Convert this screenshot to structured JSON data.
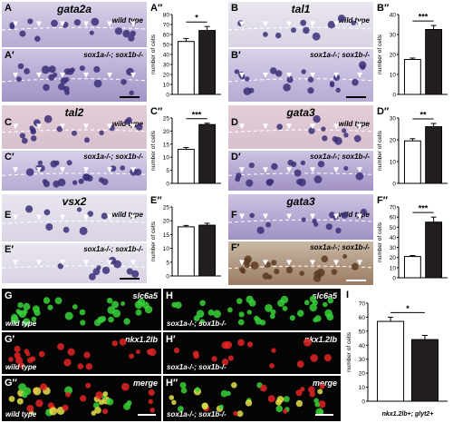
{
  "panels": {
    "A": {
      "gene": "gata2a",
      "top_label": "A",
      "bottom_label": "A′",
      "chart_label": "A′′",
      "wt": "wild type",
      "mut": "sox1a-/-; sox1b-/-",
      "sig": "*"
    },
    "B": {
      "gene": "tal1",
      "top_label": "B",
      "bottom_label": "B′",
      "chart_label": "B′′",
      "wt": "wild type",
      "mut": "sox1a-/-; sox1b-/-",
      "sig": "***"
    },
    "C": {
      "gene": "tal2",
      "top_label": "C",
      "bottom_label": "C′",
      "chart_label": "C′′",
      "wt": "wild type",
      "mut": "sox1a-/-; sox1b-/-",
      "sig": "***"
    },
    "D": {
      "gene": "gata3",
      "top_label": "D",
      "bottom_label": "D′",
      "chart_label": "D′′",
      "wt": "wild type",
      "mut": "sox1a-/-; sox1b-/-",
      "sig": "**"
    },
    "E": {
      "gene": "vsx2",
      "top_label": "E",
      "bottom_label": "E′",
      "chart_label": "E′′",
      "wt": "wild type",
      "mut": "sox1a-/-; sox1b-/-",
      "sig": ""
    },
    "F": {
      "gene": "gata3",
      "top_label": "F",
      "bottom_label": "F′",
      "chart_label": "F′′",
      "wt": "wild type",
      "mut": "sox1a-/-; sox1b-/-",
      "sig": "***"
    },
    "G": {
      "label": "G",
      "label2": "G′",
      "label3": "G′′",
      "c1": "slc6a5",
      "c2": "nkx1.2lb",
      "c3": "merge",
      "geno": "wild type"
    },
    "H": {
      "label": "H",
      "label2": "H′",
      "label3": "H′′",
      "c1": "slc6a5",
      "c2": "nkx1.2lb",
      "c3": "merge",
      "geno": "sox1a-/-; sox1b-/-"
    },
    "I": {
      "label": "I",
      "xlabel": "nkx1.2lb+; glyt2+",
      "sig": "*"
    }
  },
  "chart_data": [
    {
      "id": "A",
      "type": "bar",
      "categories": [
        "wild type",
        "sox1a-/-; sox1b-/-"
      ],
      "values": [
        53,
        64
      ],
      "errors": [
        3,
        4
      ],
      "ylabel": "number of cells",
      "ylim": [
        0,
        80
      ],
      "ticks": [
        0,
        10,
        20,
        30,
        40,
        50,
        60,
        70,
        80
      ]
    },
    {
      "id": "B",
      "type": "bar",
      "categories": [
        "wild type",
        "sox1a-/-; sox1b-/-"
      ],
      "values": [
        17.5,
        32.5
      ],
      "errors": [
        0.7,
        2
      ],
      "ylabel": "number of cells",
      "ylim": [
        0,
        40
      ],
      "ticks": [
        0,
        10,
        20,
        30,
        40
      ]
    },
    {
      "id": "C",
      "type": "bar",
      "categories": [
        "wild type",
        "sox1a-/-; sox1b-/-"
      ],
      "values": [
        13,
        22.5
      ],
      "errors": [
        0.7,
        0.5
      ],
      "ylabel": "number of cells",
      "ylim": [
        0,
        25
      ],
      "ticks": [
        0,
        5,
        10,
        15,
        20,
        25
      ]
    },
    {
      "id": "D",
      "type": "bar",
      "categories": [
        "wild type",
        "sox1a-/-; sox1b-/-"
      ],
      "values": [
        19.5,
        26
      ],
      "errors": [
        1,
        1.5
      ],
      "ylabel": "number of cells",
      "ylim": [
        0,
        30
      ],
      "ticks": [
        0,
        10,
        20,
        30
      ]
    },
    {
      "id": "E",
      "type": "bar",
      "categories": [
        "wild type",
        "sox1a-/-; sox1b-/-"
      ],
      "values": [
        17.8,
        18.4
      ],
      "errors": [
        0.5,
        0.7
      ],
      "ylabel": "number of cells",
      "ylim": [
        0,
        25
      ],
      "ticks": [
        0,
        5,
        10,
        15,
        20,
        25
      ]
    },
    {
      "id": "F",
      "type": "bar",
      "categories": [
        "wild type",
        "sox1a-/-; sox1b-/-"
      ],
      "values": [
        21,
        55
      ],
      "errors": [
        1,
        5
      ],
      "ylabel": "number of cells",
      "ylim": [
        0,
        70
      ],
      "ticks": [
        0,
        10,
        20,
        30,
        40,
        50,
        60,
        70
      ]
    },
    {
      "id": "I",
      "type": "bar",
      "categories": [
        "wild type",
        "sox1a-/-; sox1b-/-"
      ],
      "values": [
        57,
        44
      ],
      "errors": [
        3,
        3
      ],
      "ylabel": "number of cells",
      "ylim": [
        0,
        70
      ],
      "ticks": [
        0,
        10,
        20,
        30,
        40,
        50,
        60,
        70
      ]
    }
  ],
  "colors": {
    "wt_bar": "#ffffff",
    "mut_bar": "#231f20",
    "ish_cell": "#3b2f78",
    "green": "#37d23a",
    "red": "#e02525",
    "yellow": "#e8e04a"
  }
}
